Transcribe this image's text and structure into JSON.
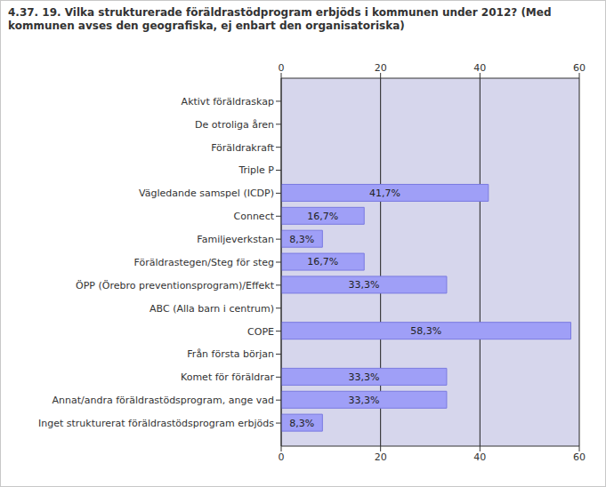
{
  "chart_data": {
    "type": "bar",
    "orientation": "horizontal",
    "title": "4.37. 19. Vilka strukturerade föräldrastödprogram erbjöds i kommunen under 2012? (Med kommunen avses den geografiska, ej enbart den organisatoriska)",
    "categories": [
      "Aktivt föräldraskap",
      "De otroliga åren",
      "Föräldrakraft",
      "Triple P",
      "Vägledande samspel (ICDP)",
      "Connect",
      "Familjeverkstan",
      "Föräldrastegen/Steg för steg",
      "ÖPP (Örebro preventionsprogram)/Effekt",
      "ABC (Alla barn i centrum)",
      "COPE",
      "Från första början",
      "Komet för föräldrar",
      "Annat/andra föräldrastödsprogram, ange vad",
      "Inget strukturerat föräldrastödsprogram erbjöds"
    ],
    "values": [
      0,
      0,
      0,
      0,
      41.7,
      16.7,
      8.3,
      16.7,
      33.3,
      0,
      58.3,
      0,
      33.3,
      33.3,
      8.3
    ],
    "value_labels": [
      null,
      null,
      null,
      null,
      "41,7%",
      "16,7%",
      "8,3%",
      "16,7%",
      "33,3%",
      null,
      "58,3%",
      null,
      "33,3%",
      "33,3%",
      "8,3%"
    ],
    "color": "#9f9ff7",
    "xlim": [
      0,
      60
    ],
    "xticks": [
      0,
      20,
      40,
      60
    ],
    "grid": true,
    "data_labels": true
  }
}
